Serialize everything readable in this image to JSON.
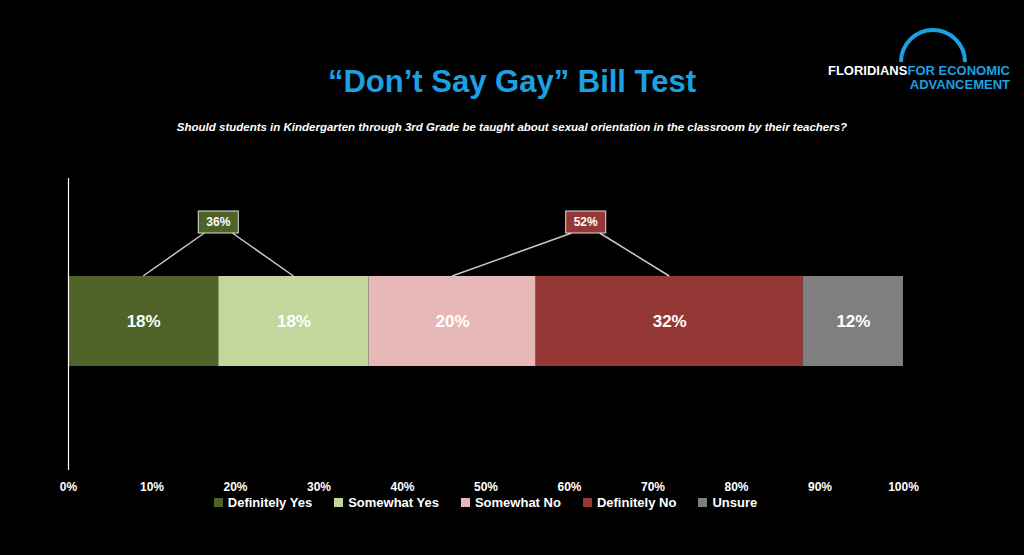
{
  "chart_data": {
    "type": "bar",
    "title": "“Don’t Say Gay” Bill Test",
    "subtitle": "Should students in Kindergarten through 3rd Grade be taught about sexual orientation in the classroom by their teachers?",
    "orientation": "horizontal",
    "stacked": true,
    "data_labels": true,
    "tick_labels": "x",
    "grid": false,
    "legend": "bottom",
    "categories": [
      null
    ],
    "series": [
      {
        "name": "Definitely Yes",
        "color": "#4f6228",
        "values": [
          18
        ],
        "value_labels": [
          "18%"
        ]
      },
      {
        "name": "Somewhat Yes",
        "color": "#c3d69b",
        "values": [
          18
        ],
        "value_labels": [
          "18%"
        ]
      },
      {
        "name": "Somewhat No",
        "color": "#e6b9b8",
        "values": [
          20
        ],
        "value_labels": [
          "20%"
        ]
      },
      {
        "name": "Definitely No",
        "color": "#953735",
        "values": [
          32
        ],
        "value_labels": [
          "32%"
        ]
      },
      {
        "name": "Unsure",
        "color": "#7f7f7f",
        "values": [
          12
        ],
        "value_labels": [
          "12%"
        ]
      }
    ],
    "annotations": [
      {
        "text": "36%",
        "value": 36,
        "series": [
          "Definitely Yes",
          "Somewhat Yes"
        ],
        "color": "#4f6228"
      },
      {
        "text": "52%",
        "value": 52,
        "series": [
          "Somewhat No",
          "Definitely No"
        ],
        "color": "#953735"
      }
    ],
    "xlim": [
      0,
      100
    ],
    "xticks": [
      {
        "value": 0,
        "label": "0%"
      },
      {
        "value": 10,
        "label": "10%"
      },
      {
        "value": 20,
        "label": "20%"
      },
      {
        "value": 30,
        "label": "30%"
      },
      {
        "value": 40,
        "label": "40%"
      },
      {
        "value": 50,
        "label": "50%"
      },
      {
        "value": 60,
        "label": "60%"
      },
      {
        "value": 70,
        "label": "70%"
      },
      {
        "value": 80,
        "label": "80%"
      },
      {
        "value": 90,
        "label": "90%"
      },
      {
        "value": 100,
        "label": "100%"
      }
    ]
  },
  "logo": [
    "FLORIDIANS",
    "FOR ECONOMIC",
    "ADVANCEMENT"
  ]
}
